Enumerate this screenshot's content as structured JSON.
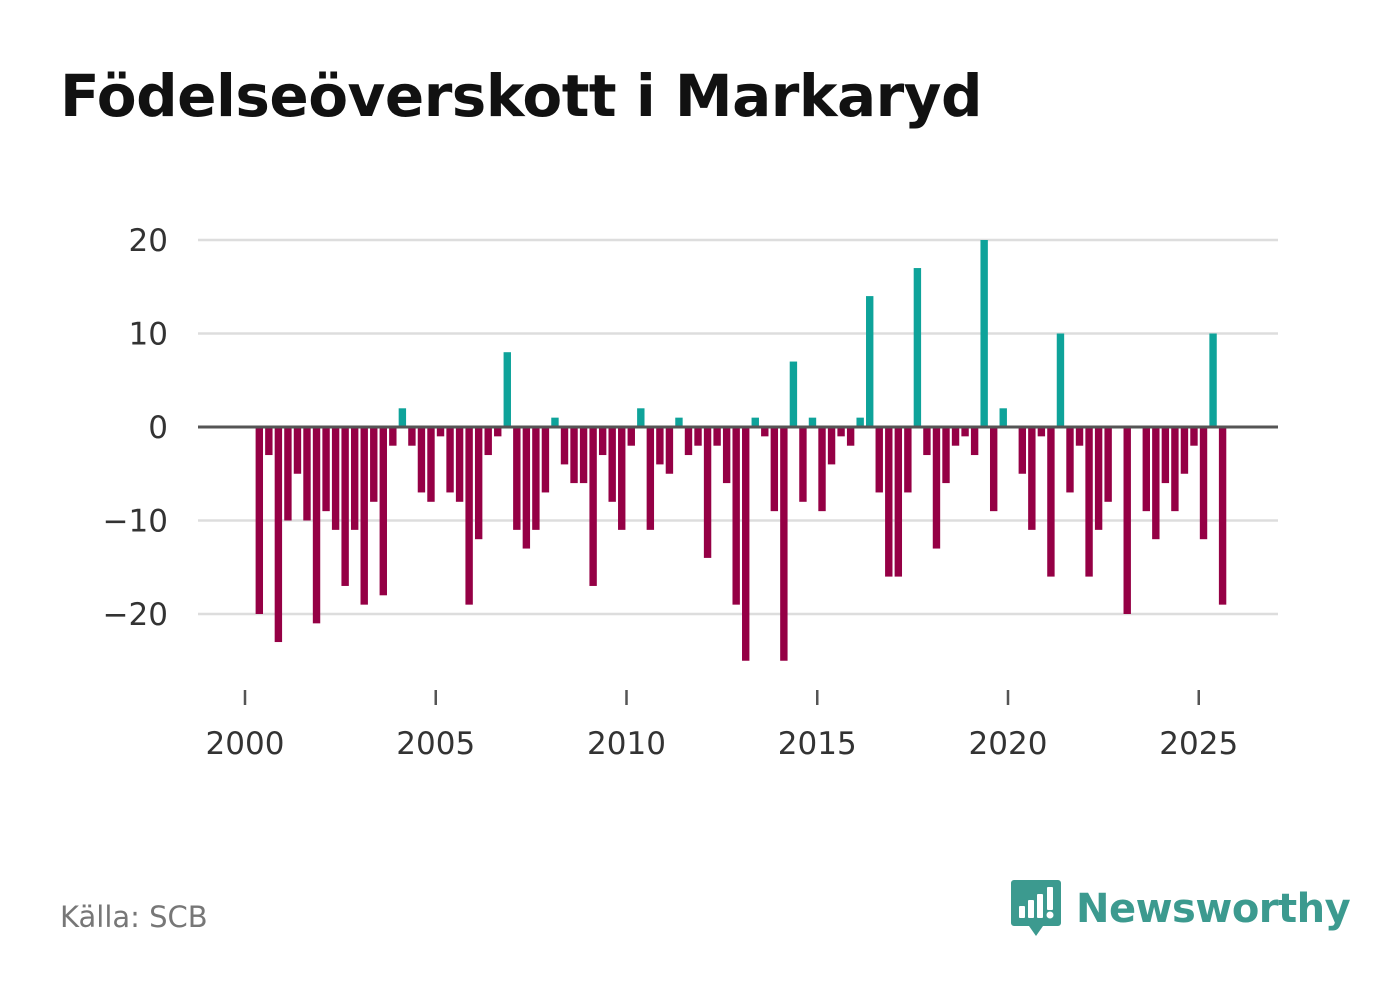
{
  "title": "Födelseöverskott i Markaryd",
  "source": "Källa: SCB",
  "brand": {
    "name": "Newsworthy",
    "icon": "newsworthy-logo-icon",
    "color": "#3c9a8f"
  },
  "colors": {
    "positive": "#0ea39a",
    "negative": "#950045",
    "grid": "#dddddd",
    "zero_line": "#555555"
  },
  "chart_data": {
    "type": "bar",
    "title": "Födelseöverskott i Markaryd",
    "xlabel": "",
    "ylabel": "",
    "x_ticks": [
      2000,
      2005,
      2010,
      2015,
      2020,
      2025
    ],
    "x_tick_labels": [
      "2000",
      "2005",
      "2010",
      "2015",
      "2020",
      "2025"
    ],
    "y_ticks": [
      -20,
      -10,
      0,
      10,
      20
    ],
    "y_tick_labels": [
      "−20",
      "−10",
      "0",
      "10",
      "20"
    ],
    "xlim": [
      1999.6,
      2027.0
    ],
    "ylim": [
      -29,
      20
    ],
    "grid": true,
    "frequency": "quarterly",
    "series": [
      {
        "name": "Födelseöverskott",
        "x": [
          2000.375,
          2000.625,
          2000.875,
          2001.125,
          2001.375,
          2001.625,
          2001.875,
          2002.125,
          2002.375,
          2002.625,
          2002.875,
          2003.125,
          2003.375,
          2003.625,
          2003.875,
          2004.125,
          2004.375,
          2004.625,
          2004.875,
          2005.125,
          2005.375,
          2005.625,
          2005.875,
          2006.125,
          2006.375,
          2006.625,
          2006.875,
          2007.125,
          2007.375,
          2007.625,
          2007.875,
          2008.125,
          2008.375,
          2008.625,
          2008.875,
          2009.125,
          2009.375,
          2009.625,
          2009.875,
          2010.125,
          2010.375,
          2010.625,
          2010.875,
          2011.125,
          2011.375,
          2011.625,
          2011.875,
          2012.125,
          2012.375,
          2012.625,
          2012.875,
          2013.125,
          2013.375,
          2013.625,
          2013.875,
          2014.125,
          2014.375,
          2014.625,
          2014.875,
          2015.125,
          2015.375,
          2015.625,
          2015.875,
          2016.125,
          2016.375,
          2016.625,
          2016.875,
          2017.125,
          2017.375,
          2017.625,
          2017.875,
          2018.125,
          2018.375,
          2018.625,
          2018.875,
          2019.125,
          2019.375,
          2019.625,
          2019.875,
          2020.125,
          2020.375,
          2020.625,
          2020.875,
          2021.125,
          2021.375,
          2021.625,
          2021.875,
          2022.125,
          2022.375,
          2022.625,
          2022.875,
          2023.125,
          2023.375,
          2023.625,
          2023.875,
          2024.125,
          2024.375,
          2024.625,
          2024.875,
          2025.125,
          2025.375,
          2025.625
        ],
        "values": [
          -20,
          -3,
          -23,
          -10,
          -5,
          -10,
          -21,
          -9,
          -11,
          -17,
          -11,
          -19,
          -8,
          -18,
          -2,
          2,
          -2,
          -7,
          -8,
          -1,
          -7,
          -8,
          -19,
          -12,
          -3,
          -1,
          8,
          -11,
          -13,
          -11,
          -7,
          1,
          -4,
          -6,
          -6,
          -17,
          -3,
          -8,
          -11,
          -2,
          2,
          -11,
          -4,
          -5,
          1,
          -3,
          -2,
          -14,
          -2,
          -6,
          -19,
          -25,
          1,
          -1,
          -9,
          -25,
          7,
          -8,
          1,
          -9,
          -4,
          -1,
          -2,
          1,
          14,
          -7,
          -16,
          -16,
          -7,
          17,
          -3,
          -13,
          -6,
          -2,
          -1,
          -3,
          20,
          -9,
          2,
          0,
          -5,
          -11,
          -1,
          -16,
          10,
          -7,
          -2,
          -16,
          -11,
          -8,
          0,
          -20,
          0,
          -9,
          -12,
          -6,
          -9,
          -5,
          -2,
          -12,
          10,
          -19
        ]
      }
    ]
  }
}
